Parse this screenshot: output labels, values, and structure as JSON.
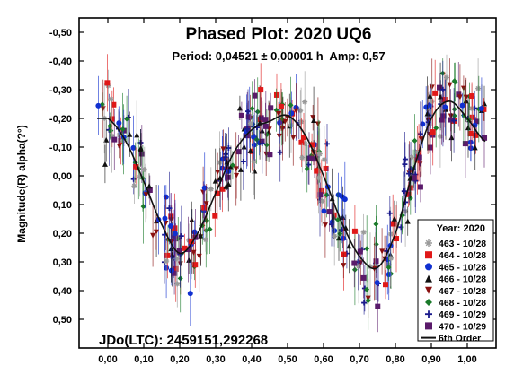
{
  "chart_data": {
    "type": "scatter",
    "title": "Phased Plot: 2020 UQ6",
    "subtitle": "Period: 0,04521 ± 0,00001 h  Amp: 0,57",
    "ylabel": "Magnitude(R) alpha(?°)",
    "xlabel": "",
    "annotation": "JDo(LTC): 2459151,292268",
    "x_range": [
      -0.08,
      1.08
    ],
    "y_range": [
      -0.55,
      0.6
    ],
    "y_inverted": true,
    "grid": false,
    "x_ticks": [
      0.0,
      0.1,
      0.2,
      0.3,
      0.4,
      0.5,
      0.6,
      0.7,
      0.8,
      0.9,
      1.0
    ],
    "x_tick_labels": [
      "0,00",
      "0,10",
      "0,20",
      "0,30",
      "0,40",
      "0,50",
      "0,60",
      "0,70",
      "0,80",
      "0,90",
      "1,00"
    ],
    "y_ticks": [
      -0.5,
      -0.4,
      -0.3,
      -0.2,
      -0.1,
      0.0,
      0.1,
      0.2,
      0.3,
      0.4,
      0.5
    ],
    "y_tick_labels": [
      "-0,50",
      "-0,40",
      "-0,30",
      "-0,20",
      "-0,10",
      "0,00",
      "0,10",
      "0,20",
      "0,30",
      "0,40",
      "0,50"
    ],
    "legend": {
      "title": "Year: 2020",
      "placement": "bottom-right",
      "entries": [
        {
          "label": "463 - 10/28",
          "marker": "asterisk",
          "color": "#9a9a9a"
        },
        {
          "label": "464 - 10/28",
          "marker": "square",
          "color": "#e01818"
        },
        {
          "label": "465 - 10/28",
          "marker": "circle",
          "color": "#1030d0"
        },
        {
          "label": "466 - 10/28",
          "marker": "triangle-up",
          "color": "#111111"
        },
        {
          "label": "467 - 10/28",
          "marker": "triangle-down",
          "color": "#8a1010"
        },
        {
          "label": "468 - 10/28",
          "marker": "diamond",
          "color": "#1a7a2a"
        },
        {
          "label": "469 - 10/29",
          "marker": "plus",
          "color": "#1a1a8c"
        },
        {
          "label": "470 - 10/29",
          "marker": "square",
          "color": "#5a1a6a"
        },
        {
          "label": "6th Order",
          "marker": "line",
          "color": "#111111"
        }
      ]
    },
    "fit_curve": {
      "name": "6th Order",
      "x": [
        0.0,
        0.05,
        0.1,
        0.15,
        0.2,
        0.25,
        0.3,
        0.35,
        0.4,
        0.45,
        0.5,
        0.55,
        0.6,
        0.65,
        0.7,
        0.75,
        0.8,
        0.85,
        0.9,
        0.95,
        1.0,
        1.05
      ],
      "y": [
        -0.2,
        -0.12,
        0.02,
        0.17,
        0.27,
        0.2,
        0.06,
        -0.08,
        -0.16,
        -0.19,
        -0.21,
        -0.14,
        0.0,
        0.16,
        0.28,
        0.32,
        0.2,
        -0.02,
        -0.2,
        -0.26,
        -0.2,
        -0.12
      ]
    }
  }
}
